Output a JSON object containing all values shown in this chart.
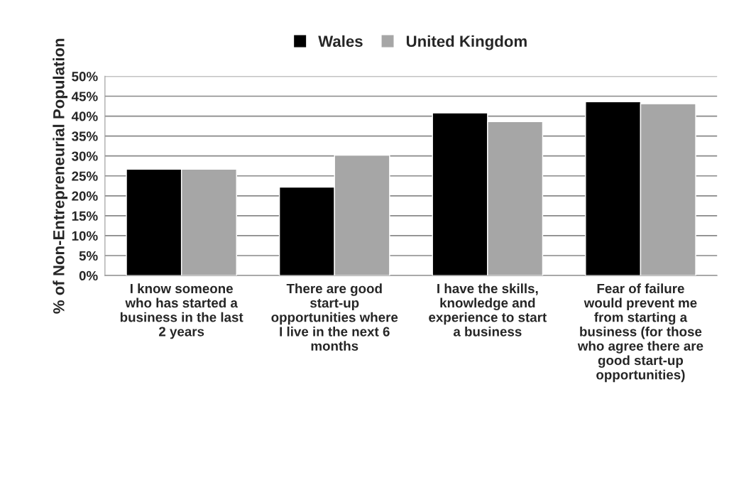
{
  "chart_data": {
    "type": "bar",
    "ylabel": "% of Non-Entrepreneurial Population",
    "categories": [
      "I know someone who has started a business in the last 2 years",
      "There are good start-up opportunities where I live in the next 6 months",
      "I have the skills, knowledge and experience to start a business",
      "Fear of failure would prevent me from starting a business (for those who agree there are good start-up opportunities)"
    ],
    "series": [
      {
        "name": "Wales",
        "color": "#000000",
        "values": [
          26.7,
          22.2,
          40.8,
          43.6
        ]
      },
      {
        "name": "United Kingdom",
        "color": "#a6a6a6",
        "values": [
          26.7,
          30.2,
          38.6,
          43.1
        ]
      }
    ],
    "ylim": [
      0,
      50
    ],
    "yticks": [
      {
        "value": 0,
        "label": "0%"
      },
      {
        "value": 5,
        "label": "5%"
      },
      {
        "value": 10,
        "label": "10%"
      },
      {
        "value": 15,
        "label": "15%"
      },
      {
        "value": 20,
        "label": "20%"
      },
      {
        "value": 25,
        "label": "25%"
      },
      {
        "value": 30,
        "label": "30%"
      },
      {
        "value": 35,
        "label": "35%"
      },
      {
        "value": 40,
        "label": "40%"
      },
      {
        "value": 45,
        "label": "45%"
      },
      {
        "value": 50,
        "label": "50%"
      }
    ],
    "grid": "y",
    "legend": "top"
  }
}
